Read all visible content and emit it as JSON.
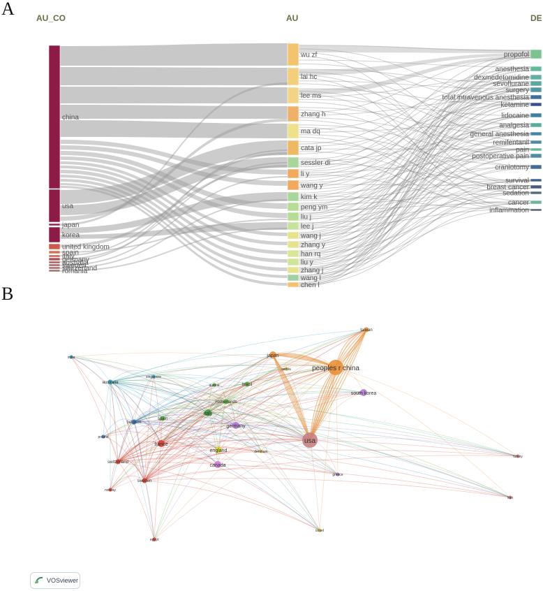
{
  "panel_a": {
    "letter": "A",
    "headers": {
      "country": "AU_CO",
      "author": "AU",
      "keyword": "DE"
    },
    "countries": [
      {
        "label": "china",
        "color": "#8e1b45"
      },
      {
        "label": "usa",
        "color": "#8e1b45"
      },
      {
        "label": "japan",
        "color": "#8e1b45"
      },
      {
        "label": "korea",
        "color": "#8e1b45"
      },
      {
        "label": "united kingdom",
        "color": "#cc5a4a"
      },
      {
        "label": "spain",
        "color": "#d86f49"
      },
      {
        "label": "italy",
        "color": "#c45a55"
      },
      {
        "label": "germany",
        "color": "#b6504f"
      },
      {
        "label": "australia",
        "color": "#a9575b"
      },
      {
        "label": "sweden",
        "color": "#a65e62"
      },
      {
        "label": "switzerland",
        "color": "#a56466"
      },
      {
        "label": "romania",
        "color": "#a56a6b"
      }
    ],
    "authors": [
      {
        "label": "wu zf",
        "color": "#f2c46e"
      },
      {
        "label": "lai hc",
        "color": "#f3cf7b"
      },
      {
        "label": "lee ms",
        "color": "#f3d486"
      },
      {
        "label": "zhang h",
        "color": "#efb06a"
      },
      {
        "label": "ma dq",
        "color": "#ede18a"
      },
      {
        "label": "cata jp",
        "color": "#f1b863"
      },
      {
        "label": "sessler di",
        "color": "#a9d69a"
      },
      {
        "label": "li y",
        "color": "#f0a95d"
      },
      {
        "label": "wang y",
        "color": "#f0a95d"
      },
      {
        "label": "kim k",
        "color": "#a9d69a"
      },
      {
        "label": "peng ym",
        "color": "#b7dc96"
      },
      {
        "label": "liu j",
        "color": "#b7dc96"
      },
      {
        "label": "lee j",
        "color": "#c5e39a"
      },
      {
        "label": "wang j",
        "color": "#e6e38c"
      },
      {
        "label": "zhang y",
        "color": "#e6e38c"
      },
      {
        "label": "han rq",
        "color": "#d9e696"
      },
      {
        "label": "liu y",
        "color": "#cfe59a"
      },
      {
        "label": "zhang j",
        "color": "#e6e38c"
      },
      {
        "label": "wang l",
        "color": "#9fd2a0"
      },
      {
        "label": "chen l",
        "color": "#f3c16f"
      }
    ],
    "keywords": [
      {
        "label": "propofol",
        "color": "#7cc48f"
      },
      {
        "label": "anesthesia",
        "color": "#66b89c"
      },
      {
        "label": "dexmedetomidine",
        "color": "#5fb0a0"
      },
      {
        "label": "sevoflurane",
        "color": "#5aa8a2"
      },
      {
        "label": "surgery",
        "color": "#4f98a3"
      },
      {
        "label": "total intravenous anesthesia",
        "color": "#3e6f9a"
      },
      {
        "label": "ketamine",
        "color": "#3e4c92"
      },
      {
        "label": "lidocaine",
        "color": "#3f7fa6"
      },
      {
        "label": "analgesia",
        "color": "#5aab97"
      },
      {
        "label": "general anesthesia",
        "color": "#3f86a7"
      },
      {
        "label": "remifentanil",
        "color": "#4b8aa5"
      },
      {
        "label": "pain",
        "color": "#67b59a"
      },
      {
        "label": "postoperative pain",
        "color": "#4f8ca6"
      },
      {
        "label": "craniotomy",
        "color": "#416d94"
      },
      {
        "label": "survival",
        "color": "#445e8a"
      },
      {
        "label": "breast cancer",
        "color": "#495a7e"
      },
      {
        "label": "sedation",
        "color": "#536b80"
      },
      {
        "label": "cancer",
        "color": "#6fb39a"
      },
      {
        "label": "inflammation",
        "color": "#4c5c6c"
      }
    ]
  },
  "panel_b": {
    "letter": "B",
    "badge": "VOSviewer",
    "nodes": [
      {
        "label": "peoples r china",
        "color": "#e8903a",
        "size": "xl"
      },
      {
        "label": "usa",
        "color": "#c98080",
        "size": "xl"
      },
      {
        "label": "taiwan",
        "color": "#e8903a",
        "size": "s"
      },
      {
        "label": "japan",
        "color": "#e8903a",
        "size": "m"
      },
      {
        "label": "south korea",
        "color": "#b07ad0",
        "size": "m"
      },
      {
        "label": "india",
        "color": "#3aa5b8",
        "size": "xs"
      },
      {
        "label": "singapore",
        "color": "#3aa5b8",
        "size": "xs"
      },
      {
        "label": "australia",
        "color": "#3aa5b8",
        "size": "s"
      },
      {
        "label": "austria",
        "color": "#5aad3d",
        "size": "xs"
      },
      {
        "label": "brazil",
        "color": "#5aad3d",
        "size": "s"
      },
      {
        "label": "serbia",
        "color": "#d0c14a",
        "size": "xs"
      },
      {
        "label": "netherlands",
        "color": "#5aad3d",
        "size": "s"
      },
      {
        "label": "italy",
        "color": "#3e9e3a",
        "size": "m"
      },
      {
        "label": "spain",
        "color": "#5aad3d",
        "size": "s"
      },
      {
        "label": "belgium",
        "color": "#3a7ec4",
        "size": "s"
      },
      {
        "label": "germany",
        "color": "#b07ad0",
        "size": "m"
      },
      {
        "label": "poland",
        "color": "#3a7ec4",
        "size": "xs"
      },
      {
        "label": "france",
        "color": "#d94033",
        "size": "m"
      },
      {
        "label": "england",
        "color": "#d4d43a",
        "size": "m"
      },
      {
        "label": "denmark",
        "color": "#d4c04a",
        "size": "xs"
      },
      {
        "label": "switzerland",
        "color": "#d94033",
        "size": "s"
      },
      {
        "label": "canada",
        "color": "#cf7ad8",
        "size": "m"
      },
      {
        "label": "greece",
        "color": "#9a7ad0",
        "size": "xs"
      },
      {
        "label": "sweden",
        "color": "#d94033",
        "size": "s"
      },
      {
        "label": "norway",
        "color": "#d94033",
        "size": "xs"
      },
      {
        "label": "turkey",
        "color": "#c98080",
        "size": "xs"
      },
      {
        "label": "iran",
        "color": "#c98080",
        "size": "xs"
      },
      {
        "label": "israel",
        "color": "#d4c04a",
        "size": "xs"
      },
      {
        "label": "egypt",
        "color": "#d94033",
        "size": "xs"
      }
    ]
  }
}
